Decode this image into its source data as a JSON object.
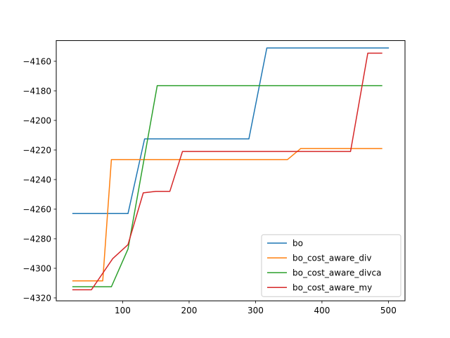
{
  "chart_data": {
    "type": "line",
    "title": "",
    "xlabel": "",
    "ylabel": "",
    "xlim": [
      0,
      525
    ],
    "ylim": [
      -4322,
      -4146
    ],
    "xticks": [
      100,
      200,
      300,
      400,
      500
    ],
    "yticks": [
      -4160,
      -4180,
      -4200,
      -4220,
      -4240,
      -4260,
      -4280,
      -4300,
      -4320
    ],
    "x_tick_labels": [
      "100",
      "200",
      "300",
      "400",
      "500"
    ],
    "y_tick_labels": [
      "−4160",
      "−4180",
      "−4200",
      "−4220",
      "−4240",
      "−4260",
      "−4280",
      "−4300",
      "−4320"
    ],
    "grid": false,
    "legend_position": "lower right",
    "series": [
      {
        "name": "bo",
        "color": "#1f77b4",
        "points": [
          [
            25,
            -4263
          ],
          [
            108,
            -4263
          ],
          [
            133,
            -4212.5
          ],
          [
            290,
            -4212.5
          ],
          [
            317,
            -4151
          ],
          [
            500,
            -4151
          ]
        ]
      },
      {
        "name": "bo_cost_aware_div",
        "color": "#ff7f0e",
        "points": [
          [
            25,
            -4308.5
          ],
          [
            70,
            -4308.5
          ],
          [
            83,
            -4226.5
          ],
          [
            348,
            -4226.5
          ],
          [
            368,
            -4219
          ],
          [
            490,
            -4219
          ]
        ]
      },
      {
        "name": "bo_cost_aware_divca",
        "color": "#2ca02c",
        "points": [
          [
            25,
            -4312.5
          ],
          [
            83,
            -4312.5
          ],
          [
            108,
            -4287
          ],
          [
            152,
            -4176.5
          ],
          [
            490,
            -4176.5
          ]
        ]
      },
      {
        "name": "bo_cost_aware_my",
        "color": "#d62728",
        "points": [
          [
            25,
            -4314.5
          ],
          [
            53,
            -4314.5
          ],
          [
            85,
            -4293.5
          ],
          [
            108,
            -4284
          ],
          [
            131,
            -4249
          ],
          [
            150,
            -4248
          ],
          [
            171,
            -4248
          ],
          [
            190,
            -4221
          ],
          [
            443,
            -4221
          ],
          [
            469,
            -4154.5
          ],
          [
            490,
            -4154.5
          ]
        ]
      }
    ]
  }
}
